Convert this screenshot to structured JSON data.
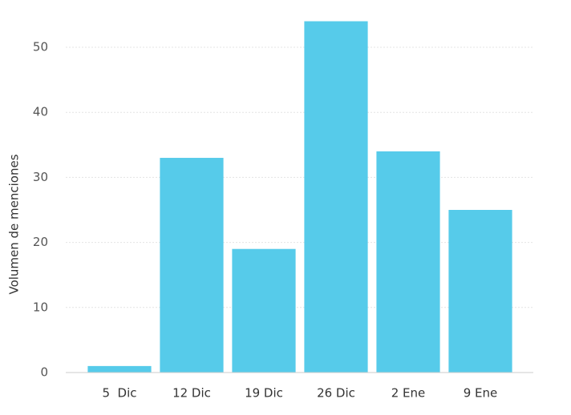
{
  "chart_data": {
    "type": "bar",
    "y_label": "Volumen de menciones",
    "categories": [
      "5  Dic",
      "12 Dic",
      "19 Dic",
      "26 Dic",
      "2 Ene",
      "9 Ene"
    ],
    "values": [
      1,
      33,
      19,
      54,
      34,
      25
    ],
    "color": "#56cbea",
    "ylim": [
      0,
      55
    ],
    "yticks": [
      0,
      10,
      20,
      30,
      40,
      50
    ],
    "grid": true
  }
}
